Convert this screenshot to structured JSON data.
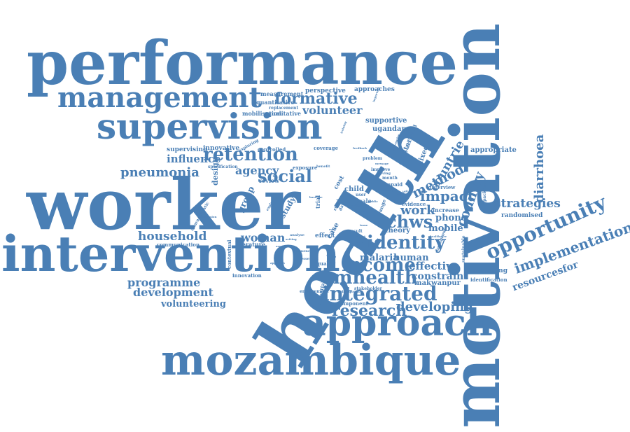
{
  "color": "#4a7fb5",
  "words": [
    {
      "text": "performance"
    },
    {
      "text": "health"
    },
    {
      "text": "motivation"
    },
    {
      "text": "worker"
    },
    {
      "text": "intervention"
    },
    {
      "text": "mozambique"
    },
    {
      "text": "approach"
    },
    {
      "text": "supervision"
    },
    {
      "text": "management"
    },
    {
      "text": "retention"
    },
    {
      "text": "formative"
    },
    {
      "text": "volunteer"
    },
    {
      "text": "social"
    },
    {
      "text": "identity"
    },
    {
      "text": "income"
    },
    {
      "text": "integrated"
    },
    {
      "text": "mhealth"
    },
    {
      "text": "research"
    },
    {
      "text": "developing"
    },
    {
      "text": "opportunity"
    },
    {
      "text": "implementation"
    },
    {
      "text": "resourcesfor"
    },
    {
      "text": "strategies"
    },
    {
      "text": "diarrhoea"
    },
    {
      "text": "country"
    },
    {
      "text": "countrie"
    },
    {
      "text": "impact"
    },
    {
      "text": "method"
    },
    {
      "text": "chws"
    },
    {
      "text": "work"
    },
    {
      "text": "pneumonia"
    },
    {
      "text": "influence"
    },
    {
      "text": "agency"
    },
    {
      "text": "household"
    },
    {
      "text": "woman"
    },
    {
      "text": "programme"
    },
    {
      "text": "development"
    },
    {
      "text": "volunteering"
    },
    {
      "text": "effective"
    },
    {
      "text": "constraint"
    },
    {
      "text": "makwanpur"
    },
    {
      "text": "malaria"
    },
    {
      "text": "human"
    },
    {
      "text": "phone"
    },
    {
      "text": "mobile"
    },
    {
      "text": "supportive"
    },
    {
      "text": "ugandan"
    },
    {
      "text": "appropriate"
    },
    {
      "text": "evaluating"
    },
    {
      "text": "identification"
    },
    {
      "text": "randomised"
    },
    {
      "text": "perspective"
    },
    {
      "text": "approaches"
    },
    {
      "text": "measurement"
    },
    {
      "text": "quantitative"
    },
    {
      "text": "replacement"
    },
    {
      "text": "mobilisation"
    },
    {
      "text": "qualitative"
    },
    {
      "text": "supervising"
    },
    {
      "text": "innovative"
    },
    {
      "text": "controlled"
    },
    {
      "text": "coverage"
    },
    {
      "text": "specification"
    },
    {
      "text": "exposure"
    },
    {
      "text": "benefit"
    },
    {
      "text": "review"
    },
    {
      "text": "design"
    },
    {
      "text": "group"
    },
    {
      "text": "study"
    },
    {
      "text": "child"
    },
    {
      "text": "scale"
    },
    {
      "text": "cost"
    },
    {
      "text": "trial"
    },
    {
      "text": "case"
    },
    {
      "text": "result"
    },
    {
      "text": "theory"
    },
    {
      "text": "effect"
    },
    {
      "text": "quality"
    },
    {
      "text": "contextual"
    },
    {
      "text": "innovation"
    },
    {
      "text": "literature"
    },
    {
      "text": "communication"
    },
    {
      "text": "characteristic"
    },
    {
      "text": "incentive"
    },
    {
      "text": "evidence"
    },
    {
      "text": "increase"
    },
    {
      "text": "component"
    },
    {
      "text": "subsequent"
    },
    {
      "text": "stakeholder"
    },
    {
      "text": "engagement"
    },
    {
      "text": "potential"
    },
    {
      "text": "cluster"
    },
    {
      "text": "mixed"
    },
    {
      "text": "accepted"
    },
    {
      "text": "improve"
    },
    {
      "text": "month"
    },
    {
      "text": "unpaid"
    },
    {
      "text": "problem"
    },
    {
      "text": "message"
    },
    {
      "text": "feedback"
    },
    {
      "text": "solving"
    },
    {
      "text": "interview"
    },
    {
      "text": "background"
    },
    {
      "text": "sustainable"
    },
    {
      "text": "package"
    },
    {
      "text": "healthcare"
    },
    {
      "text": "system"
    },
    {
      "text": "user"
    },
    {
      "text": "terms"
    },
    {
      "text": "range"
    },
    {
      "text": "issue"
    },
    {
      "text": "report"
    },
    {
      "text": "essential"
    },
    {
      "text": "analyse"
    },
    {
      "text": "frequency"
    },
    {
      "text": "rural"
    },
    {
      "text": "daily"
    },
    {
      "text": "alternative"
    },
    {
      "text": "valuing"
    },
    {
      "text": "exploring"
    },
    {
      "text": "explore"
    },
    {
      "text": "discussion"
    },
    {
      "text": "assessment"
    },
    {
      "text": "training"
    },
    {
      "text": "important"
    },
    {
      "text": "setting"
    },
    {
      "text": "baseline"
    },
    {
      "text": "approach"
    },
    {
      "text": "role"
    },
    {
      "text": "care"
    },
    {
      "text": "public"
    },
    {
      "text": "value"
    },
    {
      "text": "primary"
    }
  ]
}
